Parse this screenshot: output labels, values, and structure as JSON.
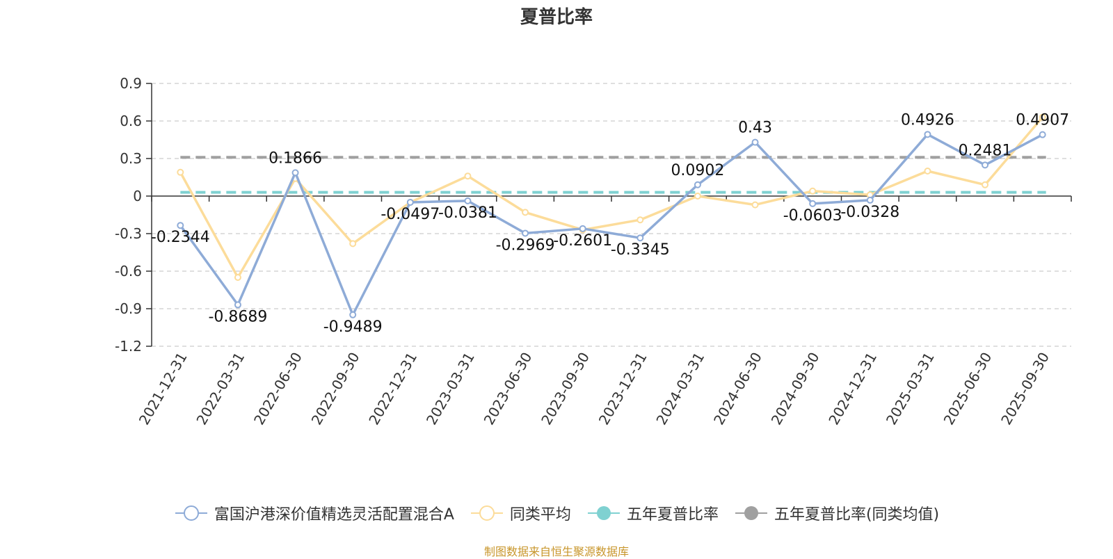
{
  "title": "夏普比率",
  "source_note": "制图数据来自恒生聚源数据库",
  "legend": [
    {
      "label": "富国沪港深价值精选灵活配置混合A",
      "color": "#8eabd7",
      "marker": "hollow-circle"
    },
    {
      "label": "同类平均",
      "color": "#fcdc9a",
      "marker": "hollow-circle"
    },
    {
      "label": "五年夏普比率",
      "color": "#7fd1d1",
      "marker": "filled-circle"
    },
    {
      "label": "五年夏普比率(同类均值)",
      "color": "#a0a0a0",
      "marker": "filled-circle"
    }
  ],
  "colors": {
    "source_text": "#c8962b",
    "axis": "#333333",
    "grid": "#cccccc"
  },
  "chart_data": {
    "type": "line",
    "title": "夏普比率",
    "categories": [
      "2021-12-31",
      "2022-03-31",
      "2022-06-30",
      "2022-09-30",
      "2022-12-31",
      "2023-03-31",
      "2023-06-30",
      "2023-09-30",
      "2023-12-31",
      "2024-03-31",
      "2024-06-30",
      "2024-09-30",
      "2024-12-31",
      "2025-03-31",
      "2025-06-30",
      "2025-09-30"
    ],
    "y_ticks": [
      "0.9",
      "0.6",
      "0.3",
      "0",
      "-0.3",
      "-0.6",
      "-0.9",
      "-1.2"
    ],
    "ylim": [
      -1.2,
      0.9
    ],
    "grid": true,
    "legend_position": "bottom",
    "series": [
      {
        "name": "富国沪港深价值精选灵活配置混合A",
        "color": "#8eabd7",
        "values": [
          -0.2344,
          -0.8689,
          0.1866,
          -0.9489,
          -0.0497,
          -0.0381,
          -0.2969,
          -0.2601,
          -0.3345,
          0.0902,
          0.43,
          -0.0603,
          -0.0328,
          0.4926,
          0.2481,
          0.4907
        ],
        "labels": [
          "-0.2344",
          "-0.8689",
          "0.1866",
          "-0.9489",
          "-0.0497",
          "-0.0381",
          "-0.2969",
          "-0.2601",
          "-0.3345",
          "0.0902",
          "0.43",
          "-0.0603",
          "-0.0328",
          "0.4926",
          "0.2481",
          "0.4907"
        ]
      },
      {
        "name": "同类平均",
        "color": "#fcdc9a",
        "values": [
          0.19,
          -0.65,
          0.14,
          -0.38,
          -0.05,
          0.16,
          -0.13,
          -0.27,
          -0.19,
          0.0,
          -0.07,
          0.04,
          0.01,
          0.2,
          0.09,
          0.63
        ]
      }
    ],
    "reference_lines": [
      {
        "name": "五年夏普比率",
        "value": 0.03,
        "color": "#7fd1d1"
      },
      {
        "name": "五年夏普比率(同类均值)",
        "value": 0.31,
        "color": "#a0a0a0"
      }
    ]
  }
}
